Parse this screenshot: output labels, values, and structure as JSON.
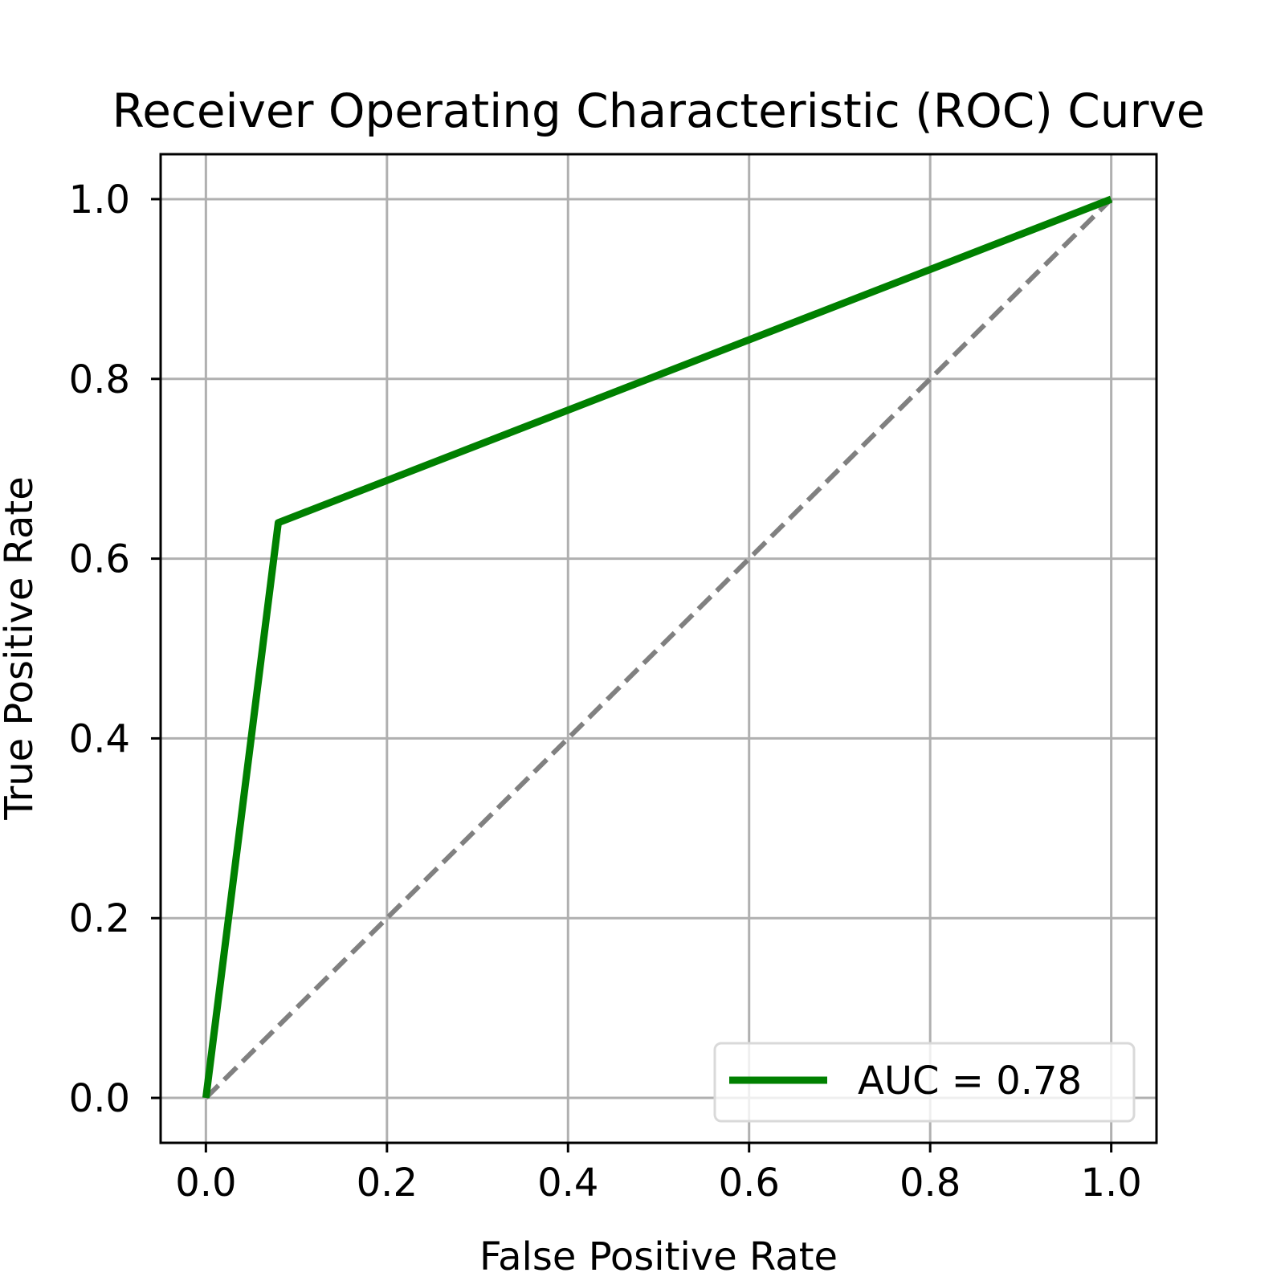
{
  "chart_data": {
    "type": "line",
    "title": "Receiver Operating Characteristic (ROC) Curve",
    "xlabel": "False Positive Rate",
    "ylabel": "True Positive Rate",
    "xlim": [
      -0.05,
      1.05
    ],
    "ylim": [
      -0.05,
      1.05
    ],
    "xticks": [
      0.0,
      0.2,
      0.4,
      0.6,
      0.8,
      1.0
    ],
    "yticks": [
      0.0,
      0.2,
      0.4,
      0.6,
      0.8,
      1.0
    ],
    "xtick_labels": [
      "0.0",
      "0.2",
      "0.4",
      "0.6",
      "0.8",
      "1.0"
    ],
    "ytick_labels": [
      "0.0",
      "0.2",
      "0.4",
      "0.6",
      "0.8",
      "1.0"
    ],
    "grid": true,
    "legend_position": "bottom-right",
    "series": [
      {
        "name": "AUC = 0.78",
        "color": "#008000",
        "style": "solid",
        "x": [
          0.0,
          0.08,
          1.0
        ],
        "y": [
          0.0,
          0.64,
          1.0
        ]
      },
      {
        "color": "#808080",
        "style": "dashed",
        "x": [
          0.0,
          1.0
        ],
        "y": [
          0.0,
          1.0
        ]
      }
    ]
  }
}
